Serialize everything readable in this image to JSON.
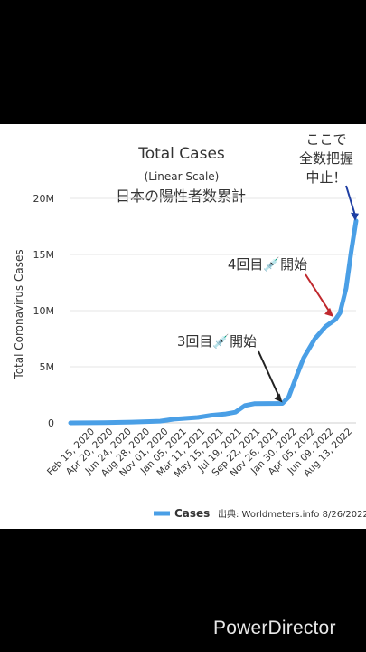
{
  "chart_data": {
    "type": "area",
    "title": "Total Cases",
    "subtitle": "(Linear Scale)",
    "overlay_title": "日本の陽性者数累計",
    "ylabel": "Total Coronavirus Cases",
    "ylim": [
      0,
      20000000
    ],
    "yticks": [
      {
        "value": 0,
        "label": "0"
      },
      {
        "value": 5000000,
        "label": "5M"
      },
      {
        "value": 10000000,
        "label": "10M"
      },
      {
        "value": 15000000,
        "label": "15M"
      },
      {
        "value": 20000000,
        "label": "20M"
      }
    ],
    "x_tick_labels": [
      "Feb 15, 2020",
      "Apr 20, 2020",
      "Jun 24, 2020",
      "Aug 28, 2020",
      "Nov 01, 2020",
      "Jan 05, 2021",
      "Mar 11, 2021",
      "May 15, 2021",
      "Jul 19, 2021",
      "Sep 22, 2021",
      "Nov 26, 2021",
      "Jan 30, 2022",
      "Apr 05, 2022",
      "Jun 09, 2022",
      "Aug 13, 2022"
    ],
    "x_start": "Feb 15, 2020",
    "x_end": "Aug 26, 2022",
    "series": [
      {
        "name": "Cases",
        "color": "#4a9fe6",
        "points": [
          {
            "date": "2020-02-15",
            "value": 0
          },
          {
            "date": "2020-06-01",
            "value": 20000
          },
          {
            "date": "2020-09-01",
            "value": 70000
          },
          {
            "date": "2020-12-01",
            "value": 150000
          },
          {
            "date": "2021-01-15",
            "value": 330000
          },
          {
            "date": "2021-03-01",
            "value": 430000
          },
          {
            "date": "2021-04-01",
            "value": 480000
          },
          {
            "date": "2021-05-15",
            "value": 680000
          },
          {
            "date": "2021-07-01",
            "value": 800000
          },
          {
            "date": "2021-08-01",
            "value": 950000
          },
          {
            "date": "2021-09-01",
            "value": 1550000
          },
          {
            "date": "2021-10-01",
            "value": 1710000
          },
          {
            "date": "2021-12-31",
            "value": 1730000
          },
          {
            "date": "2022-01-20",
            "value": 2300000
          },
          {
            "date": "2022-02-15",
            "value": 4200000
          },
          {
            "date": "2022-03-10",
            "value": 5800000
          },
          {
            "date": "2022-04-15",
            "value": 7500000
          },
          {
            "date": "2022-05-20",
            "value": 8600000
          },
          {
            "date": "2022-06-20",
            "value": 9200000
          },
          {
            "date": "2022-07-05",
            "value": 9800000
          },
          {
            "date": "2022-07-25",
            "value": 12000000
          },
          {
            "date": "2022-08-10",
            "value": 15200000
          },
          {
            "date": "2022-08-26",
            "value": 18000000
          }
        ]
      }
    ],
    "legend": {
      "label": "Cases",
      "placement": "bottom-right"
    },
    "source": "出典: Worldmeters.info 8/26/2022",
    "annotations": [
      {
        "lines": [
          "ここで",
          "全数把握",
          "中止！"
        ],
        "color": "#1f3fa3",
        "target_date": "2022-08-26",
        "target_value": 18000000
      },
      {
        "text": "4回目💉開始",
        "color": "#c0282d",
        "target_date": "2022-06-20",
        "target_value": 9200000
      },
      {
        "text": "3回目💉開始",
        "color": "#222222",
        "target_date": "2021-12-31",
        "target_value": 1730000
      }
    ]
  },
  "watermark": "PowerDirector"
}
